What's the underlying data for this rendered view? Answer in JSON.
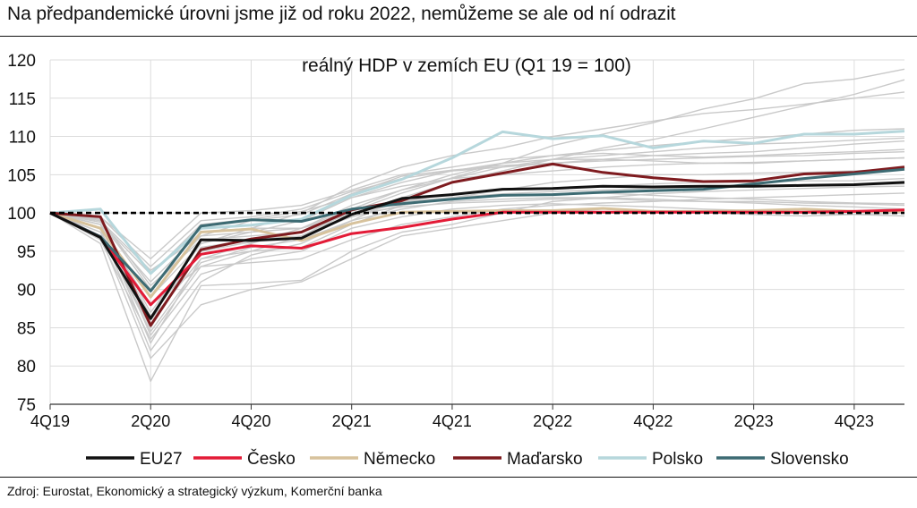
{
  "header": {
    "title": "Na předpandemické úrovni jsme již od roku 2022, nemůžeme se ale od ní odrazit"
  },
  "footer": {
    "source": "Zdroj: Eurostat, Ekonomický a strategický výzkum, Komerční banka"
  },
  "chart_data": {
    "type": "line",
    "title": "reálný HDP v zemích EU (Q1 19 = 100)",
    "xlabel": "",
    "ylabel": "",
    "ylim": [
      75,
      120
    ],
    "yticks": [
      75,
      80,
      85,
      90,
      95,
      100,
      105,
      110,
      115,
      120
    ],
    "x": [
      "4Q19",
      "1Q20",
      "2Q20",
      "3Q20",
      "4Q20",
      "1Q21",
      "2Q21",
      "3Q21",
      "4Q21",
      "1Q22",
      "2Q22",
      "3Q22",
      "4Q22",
      "1Q23",
      "2Q23",
      "3Q23",
      "4Q23",
      "1Q24"
    ],
    "xtick_labels": [
      "4Q19",
      "2Q20",
      "4Q20",
      "2Q21",
      "4Q21",
      "2Q22",
      "4Q22",
      "2Q23",
      "4Q23"
    ],
    "grid": true,
    "legend_position": "bottom",
    "reference_line": {
      "value": 100,
      "style": "dashed",
      "color": "#000000"
    },
    "series": [
      {
        "name": "EU27",
        "color": "#111111",
        "values": [
          100.0,
          96.8,
          86.2,
          96.5,
          96.4,
          96.7,
          99.8,
          101.9,
          102.4,
          103.1,
          103.2,
          103.5,
          103.4,
          103.5,
          103.5,
          103.6,
          103.7,
          104.0
        ]
      },
      {
        "name": "Česko",
        "color": "#e31b37",
        "values": [
          100.0,
          96.9,
          88.0,
          94.6,
          95.7,
          95.4,
          97.3,
          98.1,
          99.2,
          100.1,
          100.1,
          100.1,
          100.1,
          100.1,
          100.1,
          100.1,
          100.2,
          100.4
        ]
      },
      {
        "name": "Německo",
        "color": "#d7c29c",
        "values": [
          100.0,
          98.0,
          89.0,
          97.5,
          97.9,
          96.4,
          98.6,
          100.1,
          100.2,
          100.3,
          100.3,
          100.6,
          100.2,
          100.2,
          100.3,
          100.5,
          100.2,
          100.2
        ]
      },
      {
        "name": "Maďarsko",
        "color": "#7e1b1f",
        "values": [
          100.0,
          99.5,
          85.3,
          95.2,
          96.6,
          97.5,
          100.4,
          101.6,
          104.0,
          105.2,
          106.4,
          105.3,
          104.6,
          104.1,
          104.2,
          105.1,
          105.3,
          106.0
        ]
      },
      {
        "name": "Polsko",
        "color": "#b6d7dc",
        "values": [
          100.0,
          100.5,
          92.1,
          98.0,
          98.4,
          99.2,
          102.3,
          104.4,
          107.2,
          110.6,
          109.7,
          110.1,
          108.5,
          109.4,
          109.1,
          110.3,
          110.3,
          110.7
        ]
      },
      {
        "name": "Slovensko",
        "color": "#3d6b73",
        "values": [
          100.0,
          96.9,
          89.8,
          98.3,
          99.1,
          98.9,
          100.5,
          101.2,
          101.8,
          102.3,
          102.4,
          102.7,
          102.9,
          103.1,
          103.8,
          104.5,
          105.1,
          105.7
        ]
      }
    ],
    "background_series": [
      [
        100,
        99.5,
        84.0,
        93.0,
        95.0,
        97.0,
        100.2,
        102.6,
        104.6,
        106.5,
        108.8,
        110.3,
        111.8,
        113.6,
        114.9,
        116.9,
        117.5,
        118.8
      ],
      [
        100,
        98.0,
        82.0,
        91.0,
        94.5,
        96.0,
        99.0,
        102.0,
        104.0,
        105.5,
        107.0,
        108.5,
        109.6,
        111.0,
        112.5,
        114.0,
        115.5,
        117.4
      ],
      [
        100,
        99.0,
        87.0,
        96.0,
        98.0,
        100.0,
        103.5,
        106.0,
        107.5,
        108.5,
        110.0,
        111.0,
        112.0,
        113.0,
        113.5,
        114.2,
        115.0,
        115.8
      ],
      [
        100,
        97.0,
        86.0,
        94.0,
        96.0,
        98.0,
        101.0,
        103.0,
        104.5,
        106.0,
        107.0,
        107.5,
        108.0,
        108.5,
        109.0,
        109.2,
        109.5,
        109.8
      ],
      [
        100,
        96.0,
        78.0,
        90.5,
        90.8,
        91.2,
        95.0,
        97.5,
        98.5,
        100.0,
        101.5,
        102.0,
        102.5,
        102.8,
        103.0,
        103.2,
        103.4,
        103.5
      ],
      [
        100,
        98.5,
        83.0,
        94.0,
        95.0,
        95.5,
        98.5,
        101.0,
        102.0,
        103.0,
        104.0,
        104.5,
        105.0,
        105.0,
        105.2,
        105.3,
        105.5,
        105.8
      ],
      [
        100,
        99.0,
        90.0,
        97.0,
        99.0,
        99.8,
        102.5,
        104.8,
        105.6,
        106.2,
        106.5,
        106.8,
        107.0,
        107.2,
        107.4,
        107.5,
        107.8,
        108.0
      ],
      [
        100,
        97.5,
        85.0,
        95.5,
        96.5,
        97.0,
        99.5,
        101.5,
        102.0,
        102.3,
        102.5,
        102.6,
        102.3,
        102.0,
        101.8,
        101.5,
        101.3,
        101.2
      ],
      [
        100,
        98.5,
        91.0,
        97.5,
        98.0,
        98.0,
        99.8,
        100.8,
        101.3,
        101.5,
        101.8,
        101.9,
        101.6,
        101.5,
        101.3,
        101.0,
        100.8,
        100.5
      ],
      [
        100,
        99.5,
        93.0,
        99.0,
        99.5,
        100.5,
        102.8,
        104.5,
        105.5,
        106.5,
        107.5,
        108.2,
        108.8,
        109.3,
        109.8,
        110.3,
        110.8,
        111.0
      ],
      [
        100,
        98.0,
        88.0,
        93.0,
        93.5,
        94.0,
        96.5,
        98.5,
        99.5,
        100.5,
        101.0,
        101.3,
        101.5,
        101.8,
        102.0,
        102.2,
        102.4,
        102.6
      ],
      [
        100,
        99.0,
        92.5,
        97.0,
        97.5,
        98.0,
        100.5,
        103.0,
        105.0,
        106.5,
        107.0,
        107.0,
        106.8,
        106.5,
        106.5,
        106.8,
        107.0,
        107.2
      ],
      [
        100,
        97.0,
        81.0,
        88.0,
        90.0,
        91.0,
        94.0,
        97.0,
        98.0,
        99.0,
        100.0,
        100.5,
        100.2,
        100.0,
        99.8,
        99.6,
        99.8,
        100.0
      ],
      [
        100,
        98.5,
        86.5,
        95.0,
        96.2,
        97.5,
        100.0,
        101.5,
        102.5,
        103.0,
        103.3,
        103.5,
        103.8,
        104.0,
        104.0,
        104.2,
        104.2,
        104.5
      ],
      [
        100,
        99.5,
        94.0,
        100.0,
        100.3,
        101.0,
        103.0,
        105.0,
        106.0,
        107.0,
        107.5,
        107.8,
        107.5,
        107.3,
        107.5,
        107.8,
        108.0,
        108.3
      ],
      [
        100,
        98.0,
        89.0,
        96.0,
        97.5,
        99.0,
        102.0,
        104.0,
        105.5,
        106.0,
        106.5,
        107.0,
        107.5,
        107.8,
        108.0,
        108.5,
        109.0,
        109.4
      ],
      [
        100,
        97.5,
        84.5,
        93.5,
        95.5,
        96.5,
        99.0,
        100.5,
        101.5,
        101.8,
        102.0,
        102.0,
        101.8,
        101.5,
        101.5,
        101.3,
        101.2,
        101.0
      ],
      [
        100,
        98.8,
        92.0,
        98.5,
        99.2,
        100.2,
        102.0,
        103.5,
        104.5,
        105.0,
        105.5,
        106.0,
        106.3,
        106.5,
        106.6,
        106.8,
        107.0,
        107.2
      ],
      [
        100,
        99.2,
        90.5,
        96.5,
        97.0,
        97.5,
        99.5,
        101.0,
        102.0,
        102.5,
        102.8,
        103.0,
        103.2,
        103.3,
        103.4,
        103.5,
        103.6,
        103.8
      ],
      [
        100,
        96.5,
        83.5,
        92.0,
        94.0,
        95.0,
        98.0,
        99.5,
        100.5,
        101.0,
        101.2,
        101.0,
        100.8,
        100.5,
        100.3,
        100.0,
        99.8,
        99.6
      ]
    ]
  }
}
